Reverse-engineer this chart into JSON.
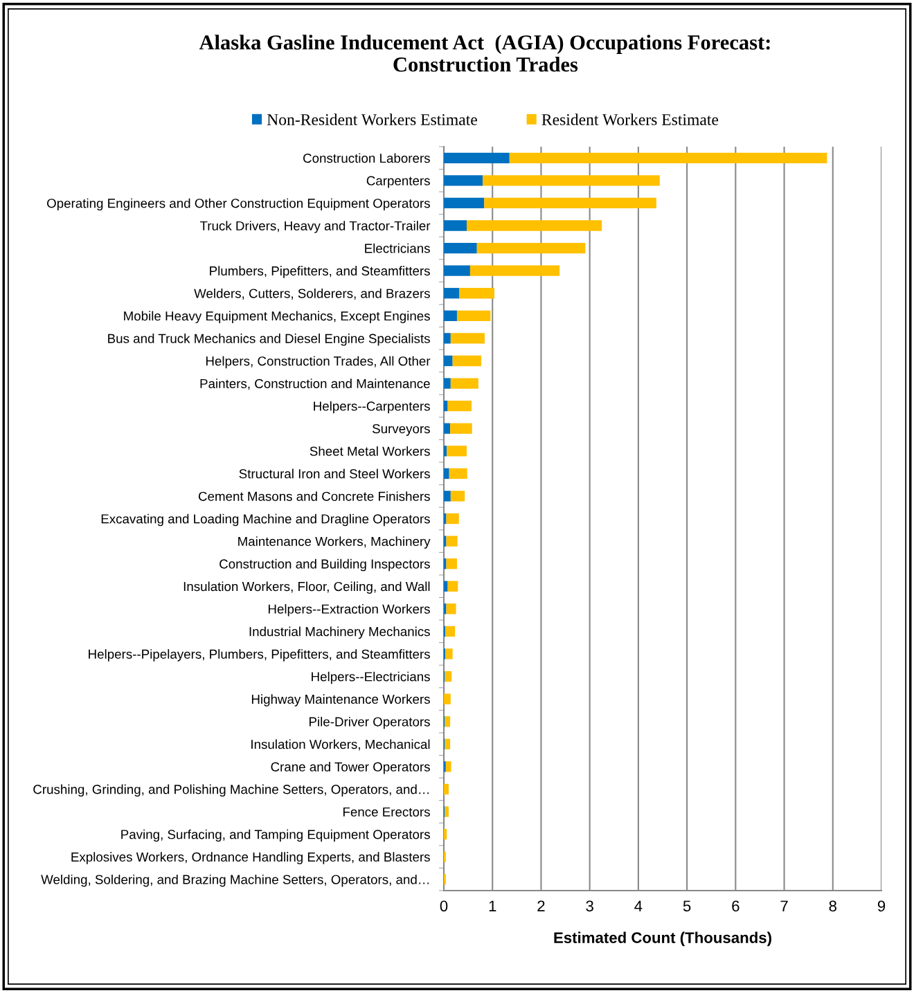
{
  "chart_data": {
    "type": "bar",
    "orientation": "horizontal",
    "stacked": true,
    "title": "Alaska Gasline Inducement Act  (AGIA) Occupations Forecast:\nConstruction Trades",
    "xlabel": "Estimated Count (Thousands)",
    "categories": [
      "Construction Laborers",
      "Carpenters",
      "Operating Engineers and Other Construction Equipment Operators",
      "Truck Drivers, Heavy and Tractor-Trailer",
      "Electricians",
      "Plumbers, Pipefitters, and Steamfitters",
      "Welders, Cutters, Solderers, and Brazers",
      "Mobile Heavy Equipment Mechanics, Except Engines",
      "Bus and Truck Mechanics and Diesel Engine Specialists",
      "Helpers, Construction Trades, All Other",
      "Painters, Construction and Maintenance",
      "Helpers--Carpenters",
      "Surveyors",
      "Sheet Metal Workers",
      "Structural Iron and Steel Workers",
      "Cement Masons and Concrete Finishers",
      "Excavating and Loading Machine and Dragline Operators",
      "Maintenance Workers, Machinery",
      "Construction and Building Inspectors",
      "Insulation Workers, Floor, Ceiling, and Wall",
      "Helpers--Extraction Workers",
      "Industrial Machinery Mechanics",
      "Helpers--Pipelayers, Plumbers, Pipefitters, and Steamfitters",
      "Helpers--Electricians",
      "Highway Maintenance Workers",
      "Pile-Driver Operators",
      "Insulation Workers, Mechanical",
      "Crane and Tower Operators",
      "Crushing, Grinding, and Polishing Machine Setters, Operators, and…",
      "Fence Erectors",
      "Paving, Surfacing, and Tamping Equipment Operators",
      "Explosives Workers, Ordnance Handling Experts, and Blasters",
      "Welding, Soldering, and Brazing Machine Setters, Operators, and…"
    ],
    "series": [
      {
        "name": "Non-Resident Workers Estimate",
        "color": "#0070c0",
        "values": [
          1.35,
          0.8,
          0.83,
          0.47,
          0.68,
          0.54,
          0.32,
          0.27,
          0.14,
          0.18,
          0.14,
          0.08,
          0.13,
          0.06,
          0.11,
          0.14,
          0.05,
          0.05,
          0.05,
          0.08,
          0.05,
          0.03,
          0.03,
          0.02,
          0.0,
          0.02,
          0.02,
          0.04,
          0.0,
          0.02,
          0.0,
          0.0,
          0.0
        ]
      },
      {
        "name": "Resident Workers Estimate",
        "color": "#ffc000",
        "values": [
          6.53,
          3.64,
          3.54,
          2.78,
          2.23,
          1.84,
          0.72,
          0.69,
          0.7,
          0.59,
          0.57,
          0.49,
          0.45,
          0.41,
          0.37,
          0.29,
          0.26,
          0.23,
          0.22,
          0.21,
          0.2,
          0.2,
          0.15,
          0.14,
          0.14,
          0.11,
          0.11,
          0.11,
          0.1,
          0.08,
          0.06,
          0.04,
          0.04
        ]
      }
    ],
    "xlim": [
      0,
      9
    ],
    "xticks": [
      0,
      1,
      2,
      3,
      4,
      5,
      6,
      7,
      8,
      9
    ],
    "grid": "x",
    "legend": "top"
  }
}
